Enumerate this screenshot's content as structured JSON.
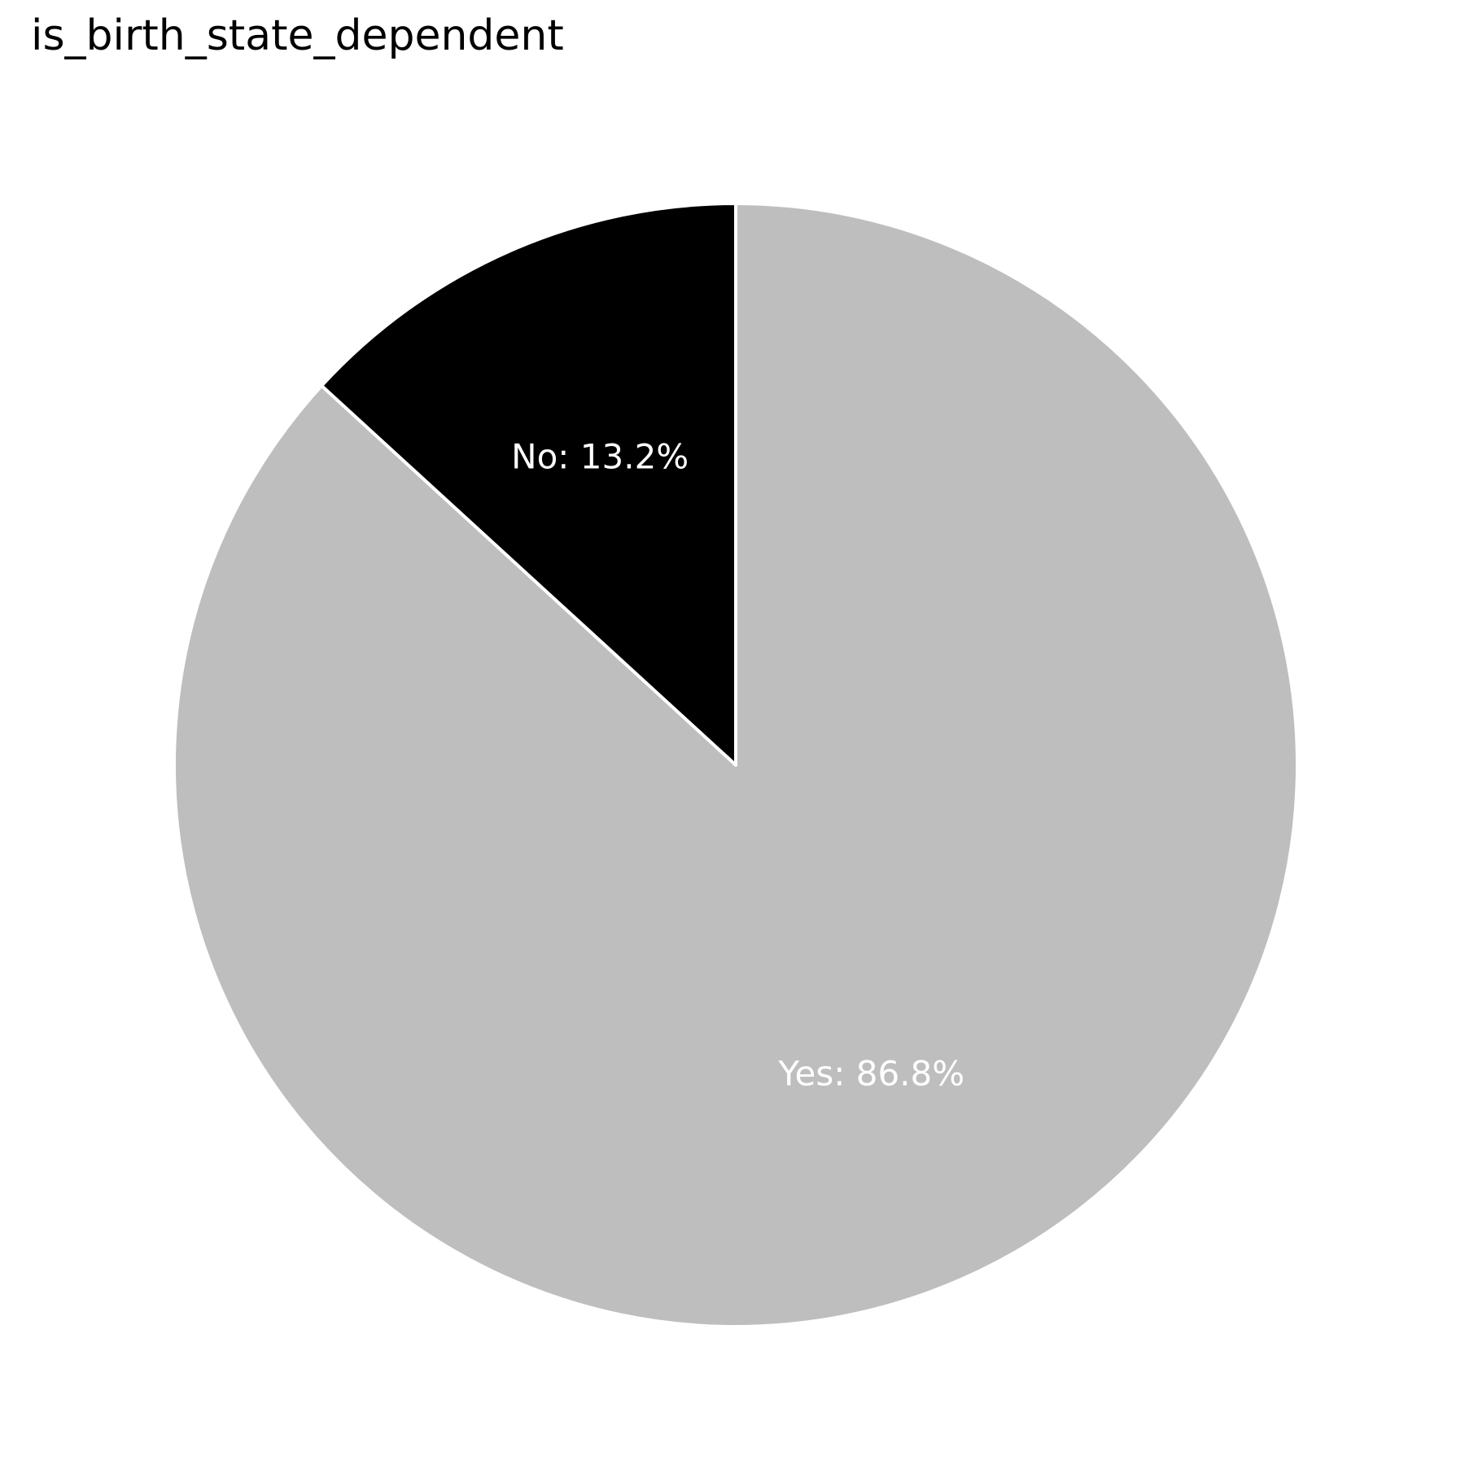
{
  "chart_data": {
    "type": "pie",
    "title": "is_birth_state_dependent",
    "slices": [
      {
        "label": "No",
        "value": 13.2,
        "display": "No: 13.2%",
        "color": "#000000",
        "label_color": "#ffffff"
      },
      {
        "label": "Yes",
        "value": 86.8,
        "display": "Yes: 86.8%",
        "color": "#bebebe",
        "label_color": "#ffffff"
      }
    ],
    "start_angle": "12 o'clock",
    "direction": "counterclockwise",
    "edge_color": "#ffffff"
  }
}
